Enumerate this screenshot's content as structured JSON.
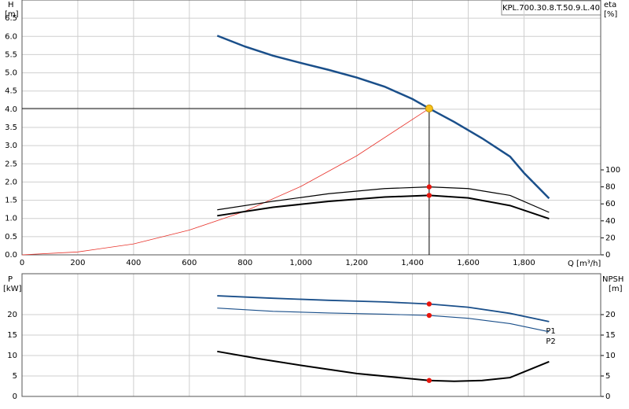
{
  "chart_data": [
    {
      "type": "line",
      "title": "KPL.700.30.8.T.50.9.L.40",
      "y_label": "H",
      "y_unit": "[m]",
      "y2_label": "eta",
      "y2_unit": "[%]",
      "x_label": "Q [m³/h]",
      "xlim": [
        0,
        2075
      ],
      "ylim": [
        0,
        7
      ],
      "y2lim": [
        0,
        300
      ],
      "xticks": [
        0,
        200,
        400,
        600,
        800,
        {
          "value": 1000,
          "label": "1,000"
        },
        {
          "value": 1200,
          "label": "1,200"
        },
        {
          "value": 1400,
          "label": "1,400"
        },
        {
          "value": 1600,
          "label": "1,600"
        },
        {
          "value": 1800,
          "label": "1,800"
        }
      ],
      "yticks": [
        {
          "value": 0,
          "label": "0.0"
        },
        0.5,
        {
          "value": 1,
          "label": "1.0"
        },
        1.5,
        {
          "value": 2,
          "label": "2.0"
        },
        2.5,
        {
          "value": 3,
          "label": "3.0"
        },
        3.5,
        {
          "value": 4,
          "label": "4.0"
        },
        4.5,
        {
          "value": 5,
          "label": "5.0"
        },
        5.5,
        {
          "value": 6,
          "label": "6.0"
        },
        6.5
      ],
      "y2ticks": [
        0,
        20,
        40,
        60,
        80,
        100
      ],
      "grid": true,
      "operating_point": {
        "x": 1460,
        "y": 4.02
      },
      "series": [
        {
          "color": "#1a4f8a",
          "width": 2.5,
          "x": [
            700,
            800,
            900,
            1000,
            1100,
            1200,
            1300,
            1400,
            1460,
            1550,
            1650,
            1750,
            1800,
            1890
          ],
          "values": [
            6.02,
            5.72,
            5.47,
            5.27,
            5.08,
            4.87,
            4.62,
            4.28,
            4.02,
            3.65,
            3.2,
            2.7,
            2.25,
            1.55
          ]
        },
        {
          "color": "#e8332b",
          "width": 0.8,
          "x": [
            0,
            200,
            400,
            600,
            800,
            1000,
            1200,
            1460
          ],
          "values": [
            0,
            0.08,
            0.3,
            0.68,
            1.2,
            1.88,
            2.72,
            4.02
          ]
        },
        {
          "color": "#000000",
          "width": 1.2,
          "axis": "y2",
          "x": [
            700,
            900,
            1100,
            1300,
            1460,
            1600,
            1750,
            1890
          ],
          "values": [
            53,
            63,
            72,
            78,
            80,
            78,
            70,
            50
          ]
        },
        {
          "color": "#000000",
          "width": 2,
          "axis": "y2",
          "x": [
            700,
            900,
            1100,
            1300,
            1460,
            1600,
            1750,
            1890
          ],
          "values": [
            46,
            56,
            63,
            68,
            70,
            67,
            58,
            42.5
          ]
        }
      ]
    },
    {
      "type": "line",
      "y_label": "P",
      "y_unit": "[kW]",
      "y2_label": "NPSH",
      "y2_unit": "[m]",
      "xlim": [
        0,
        2075
      ],
      "ylim": [
        0,
        30
      ],
      "y2lim": [
        0,
        30
      ],
      "xgrid": [
        0,
        200,
        400,
        600,
        800,
        1000,
        1200,
        1400,
        1600,
        1800
      ],
      "yticks": [
        0,
        5,
        10,
        15,
        20
      ],
      "y2ticks": [
        0,
        5,
        10,
        15,
        20
      ],
      "grid": true,
      "operating_point": {
        "x": 1460
      },
      "series": [
        {
          "name": "P1",
          "color": "#1a4f8a",
          "width": 1.8,
          "x": [
            700,
            900,
            1100,
            1300,
            1460,
            1600,
            1750,
            1890
          ],
          "values": [
            24.6,
            24,
            23.5,
            23.1,
            22.6,
            21.8,
            20.3,
            18.3
          ]
        },
        {
          "name": "P2",
          "color": "#1a4f8a",
          "width": 1.1,
          "x": [
            700,
            900,
            1100,
            1300,
            1460,
            1600,
            1750,
            1890
          ],
          "values": [
            21.6,
            20.8,
            20.4,
            20.1,
            19.8,
            19.1,
            17.8,
            15.8
          ]
        },
        {
          "color": "#000000",
          "width": 2,
          "axis": "y2",
          "x": [
            700,
            850,
            1000,
            1200,
            1460,
            1550,
            1650,
            1750,
            1800,
            1890
          ],
          "values": [
            11,
            9.2,
            7.6,
            5.6,
            3.9,
            3.7,
            3.9,
            4.6,
            6,
            8.5
          ]
        }
      ]
    }
  ]
}
